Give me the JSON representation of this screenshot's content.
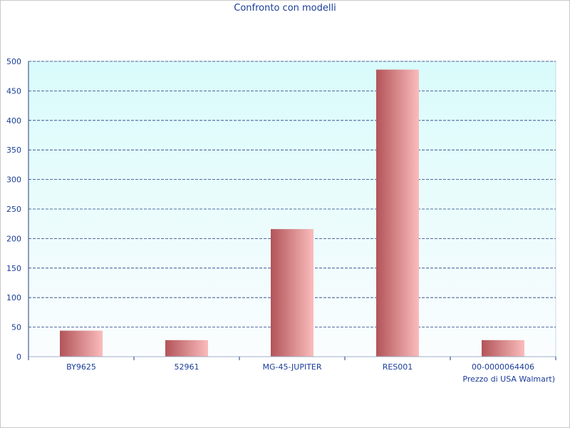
{
  "chart_data": {
    "type": "bar",
    "title": "Confronto con modelli",
    "xlabel": "Prezzo di USA Walmart)",
    "ylabel": "",
    "categories": [
      "BY9625",
      "52961",
      "MG-45-JUPITER",
      "RES001",
      "00-0000064406"
    ],
    "values": [
      44,
      28,
      216,
      486,
      28
    ],
    "ylim": [
      0,
      500
    ],
    "yticks": [
      "0",
      "50",
      "100",
      "150",
      "200",
      "250",
      "300",
      "350",
      "400",
      "450",
      "500"
    ],
    "grid": true,
    "colors": {
      "bar_dark": "#b25459",
      "bar_light": "#fbbcbc",
      "plot_bg_top": "#d9fbfb",
      "plot_bg_bottom": "#fbfdfe",
      "grid": "#1f3d80",
      "text": "#1a3d99"
    }
  }
}
